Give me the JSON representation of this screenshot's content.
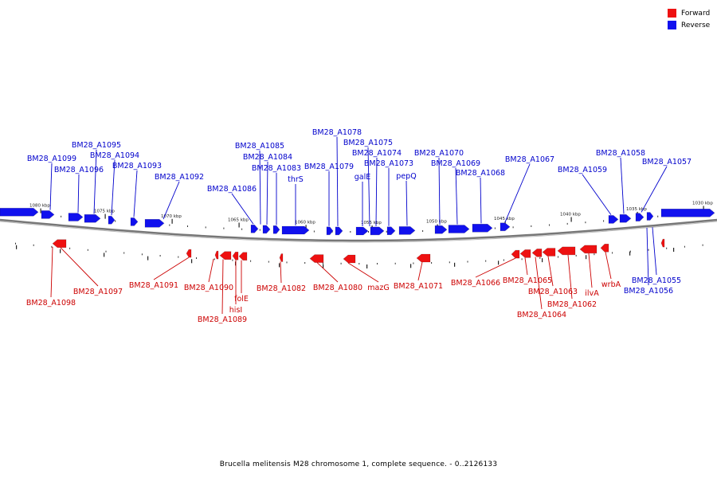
{
  "caption": "Brucella melitensis M28 chromosome 1, complete sequence. - 0..2126133",
  "legend": [
    {
      "label": "Forward",
      "color": "#ee1111"
    },
    {
      "label": "Reverse",
      "color": "#1111ee"
    }
  ],
  "colors": {
    "forward": "#ee1111",
    "reverse": "#1111ee",
    "forward_text": "#cc0000",
    "reverse_text": "#0000cc",
    "backbone": "#888888"
  },
  "scale_labels": [
    "1080 kbp",
    "1075 kbp",
    "1070 kbp",
    "1065 kbp",
    "1060 kbp",
    "1055 kbp",
    "1050 kbp",
    "1045 kbp",
    "1040 kbp",
    "1035 kbp",
    "1030 kbp"
  ],
  "reverse_genes": [
    "BM28_A1099",
    "BM28_A1096",
    "BM28_A1095",
    "BM28_A1094",
    "BM28_A1093",
    "BM28_A1092",
    "BM28_A1086",
    "BM28_A1085",
    "BM28_A1084",
    "BM28_A1083",
    "thrS",
    "BM28_A1079",
    "BM28_A1078",
    "galE",
    "BM28_A1075",
    "BM28_A1074",
    "BM28_A1073",
    "pepQ",
    "BM28_A1070",
    "BM28_A1069",
    "BM28_A1068",
    "BM28_A1067",
    "BM28_A1059",
    "BM28_A1058",
    "BM28_A1057",
    "BM28_A1055",
    "BM28_A1056"
  ],
  "forward_genes": [
    "BM28_A1098",
    "BM28_A1097",
    "BM28_A1091",
    "BM28_A1090",
    "BM28_A1089",
    "hisI",
    "folE",
    "BM28_A1082",
    "BM28_A1080",
    "mazG",
    "BM28_A1071",
    "BM28_A1066",
    "BM28_A1065",
    "BM28_A1064",
    "BM28_A1063",
    "BM28_A1062",
    "ilvA",
    "wrbA"
  ]
}
